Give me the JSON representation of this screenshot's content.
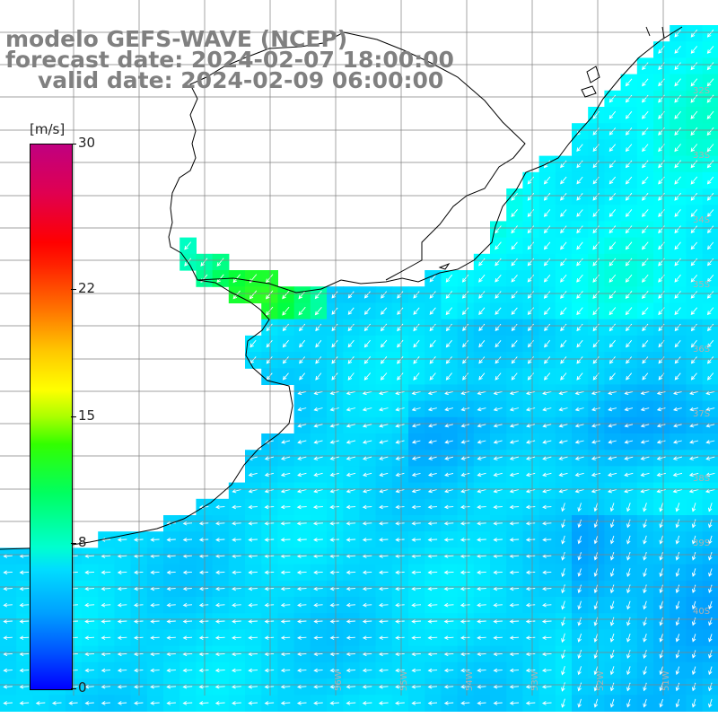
{
  "title": {
    "line1": "modelo GEFS-WAVE (NCEP)",
    "line2": "forecast date: 2024-02-07 18:00:00",
    "line3": "valid date: 2024-02-09 06:00:00"
  },
  "colorbar": {
    "unit": "[m/s]",
    "min": 0,
    "max": 30,
    "ticks": [
      {
        "value": 30,
        "label": "30"
      },
      {
        "value": 22,
        "label": "22"
      },
      {
        "value": 15,
        "label": "15"
      },
      {
        "value": 8,
        "label": "8"
      },
      {
        "value": 0,
        "label": "0"
      }
    ],
    "colors": {
      "low": "#0000ff",
      "mid": "#00ffff",
      "green": "#00ff00",
      "yellow": "#ffff00",
      "high": "#ff0000",
      "top": "#c00080"
    }
  },
  "map": {
    "land_color": "#ffffff",
    "coast_color": "#000000",
    "grid_color": "#808080",
    "arrow_color": "#ffffff",
    "latitude_labels": [
      "32S",
      "33S",
      "34S",
      "35S",
      "36S",
      "37S",
      "38S",
      "39S",
      "40S"
    ],
    "longitude_labels": [
      "56W",
      "55W",
      "54W",
      "53W",
      "52W",
      "51W"
    ]
  }
}
